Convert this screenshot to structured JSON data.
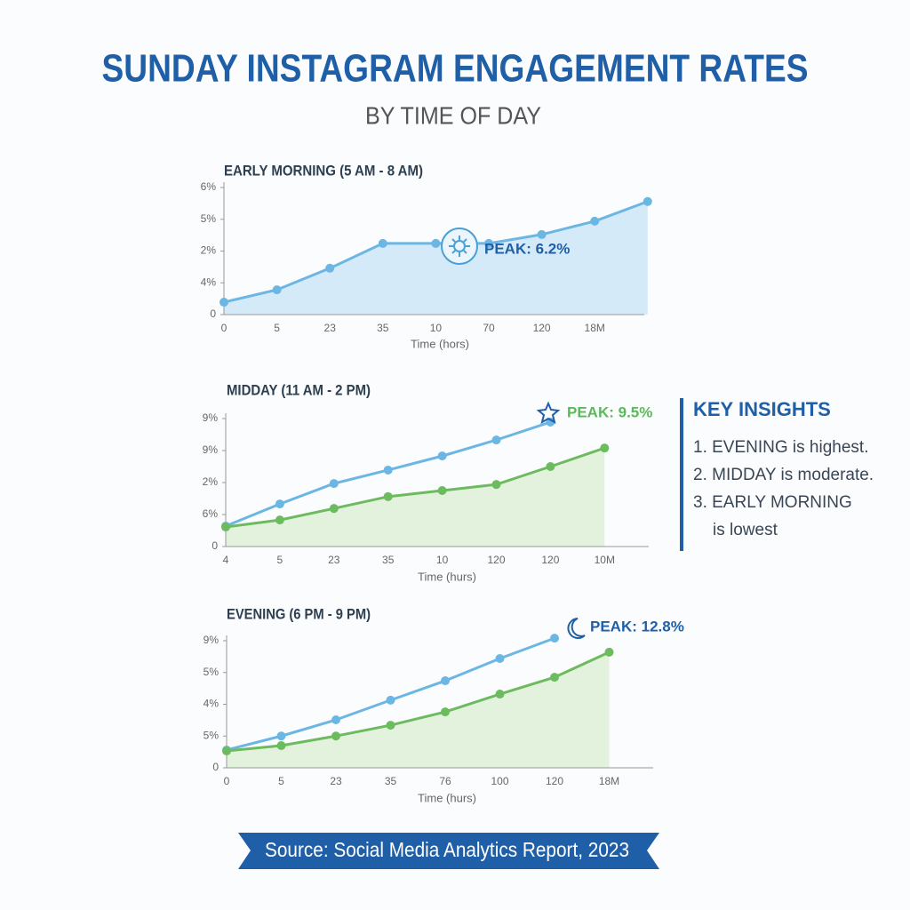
{
  "title": "SUNDAY INSTAGRAM ENGAGEMENT RATES",
  "subtitle": "BY TIME OF DAY",
  "chart_data": [
    {
      "type": "line",
      "title": "EARLY MORNING (5 AM - 8 AM)",
      "x_label": "Time (hors)",
      "categories": [
        "0",
        "5",
        "23",
        "35",
        "10",
        "70",
        "120",
        "18M",
        null
      ],
      "ylim": [
        0,
        4
      ],
      "yticks": [
        0,
        {
          "value": 1,
          "label": "4%"
        },
        {
          "value": 2,
          "label": "2%"
        },
        {
          "value": 3,
          "label": "5%"
        },
        {
          "value": 4,
          "label": "6%"
        }
      ],
      "series": [
        {
          "color": "#6bb6e3",
          "fill": "#d4eaf8",
          "values": [
            0.39,
            0.78,
            1.46,
            2.24,
            2.24,
            2.24,
            2.52,
            2.94,
            3.56
          ]
        }
      ],
      "annotations": [
        {
          "text": "PEAK: 6.2%",
          "color": "#1f5fa8"
        }
      ]
    },
    {
      "type": "line",
      "title": "MIDDAY (11 AM - 2 PM)",
      "x_label": "Time (hurs)",
      "categories": [
        "4",
        "5",
        "23",
        "35",
        "10",
        "120",
        "120",
        "10M"
      ],
      "ylim": [
        0,
        4
      ],
      "yticks": [
        0,
        {
          "value": 1,
          "label": "6%"
        },
        {
          "value": 2,
          "label": "2%"
        },
        {
          "value": 3,
          "label": "9%"
        },
        {
          "value": 4,
          "label": "9%"
        }
      ],
      "series": [
        {
          "color": "#6bb6e3",
          "values": [
            0.64,
            1.33,
            1.97,
            2.39,
            2.83,
            3.33,
            3.89,
            null
          ]
        },
        {
          "color": "#6dbb5f",
          "fill": "#e3f2dd",
          "values": [
            0.61,
            0.83,
            1.19,
            1.56,
            1.75,
            1.94,
            2.5,
            3.08
          ]
        }
      ],
      "annotations": [
        {
          "text": "PEAK: 9.5%",
          "color": "#5cb85c"
        }
      ]
    },
    {
      "type": "line",
      "title": "EVENING (6 PM - 9 PM)",
      "x_label": "Time (hurs)",
      "categories": [
        "0",
        "5",
        "23",
        "35",
        "76",
        "100",
        "120",
        "18M"
      ],
      "ylim": [
        0,
        4
      ],
      "yticks": [
        0,
        {
          "value": 1,
          "label": "5%"
        },
        {
          "value": 2,
          "label": "4%"
        },
        {
          "value": 3,
          "label": "5%"
        },
        {
          "value": 4,
          "label": "9%"
        }
      ],
      "series": [
        {
          "color": "#6bb6e3",
          "values": [
            0.56,
            1.0,
            1.51,
            2.13,
            2.74,
            3.44,
            4.08,
            null
          ]
        },
        {
          "color": "#6dbb5f",
          "fill": "#e3f2dd",
          "values": [
            0.53,
            0.7,
            1.0,
            1.34,
            1.76,
            2.32,
            2.85,
            3.64
          ]
        }
      ],
      "annotations": [
        {
          "text": "PEAK: 12.8%",
          "color": "#1f5fa8"
        }
      ]
    }
  ],
  "key_insights": {
    "title": "KEY INSIGHTS",
    "items": [
      "1. EVENING is highest.",
      "2. MIDDAY is moderate.",
      "3. EARLY MORNING is lowest"
    ]
  },
  "source": "Source: Social Media Analytics Report, 2023"
}
